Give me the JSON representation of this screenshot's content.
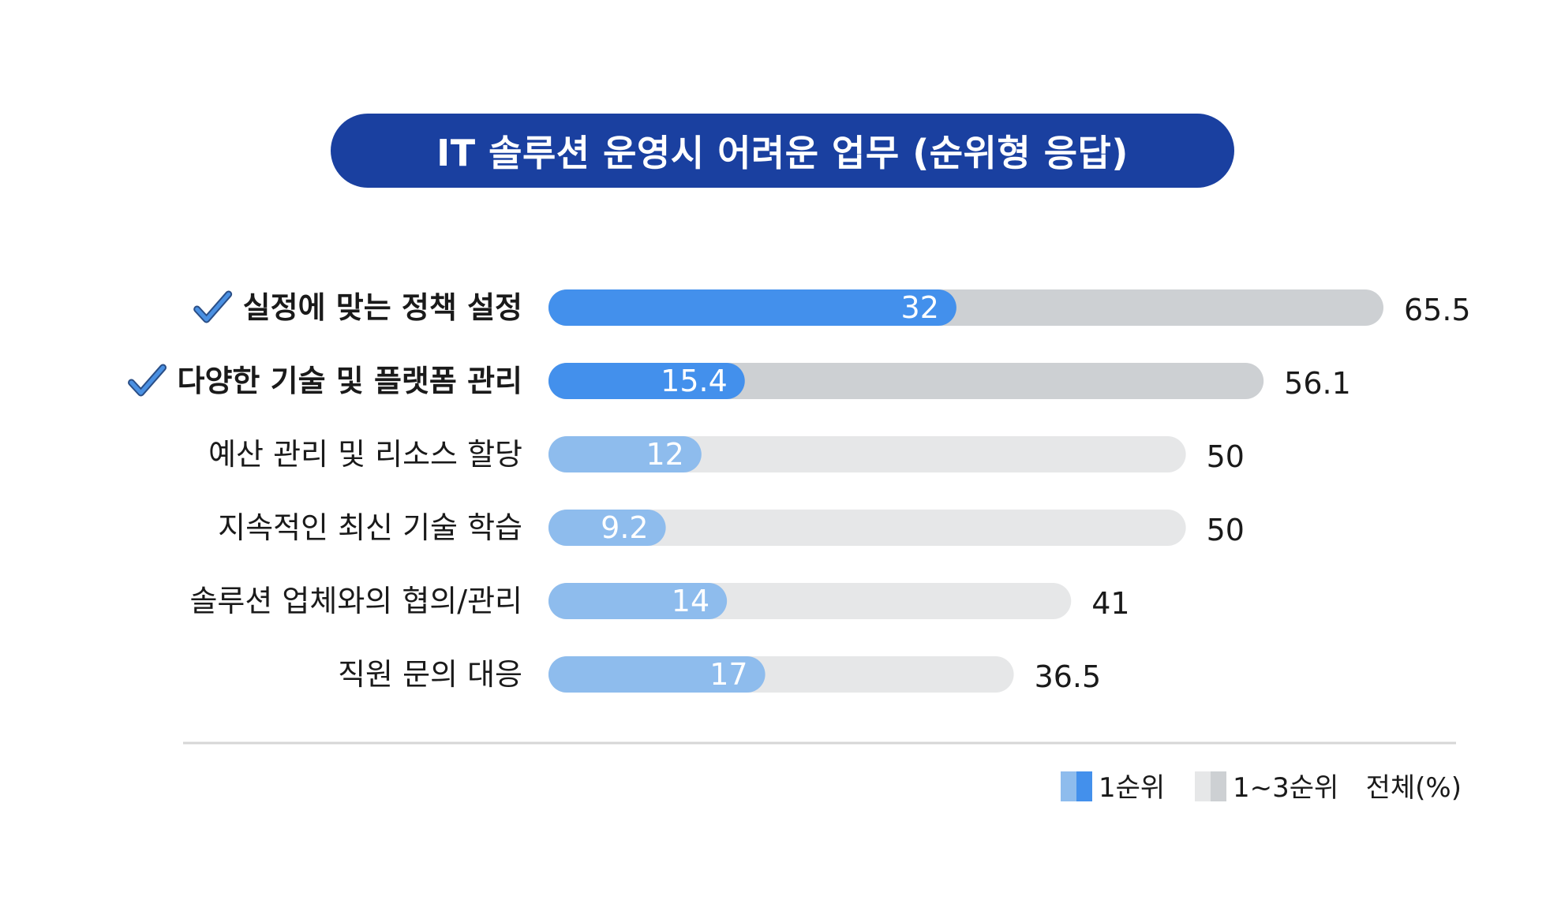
{
  "title": "IT 솔루션 운영시 어려운 업무 (순위형 응답)",
  "colors": {
    "title_bg": "#1a40a0",
    "first_rank_highlight": "#4390ec",
    "first_rank": "#8ebced",
    "top3_highlight": "#cdd0d3",
    "top3": "#e6e7e8",
    "check": "#4a90e2"
  },
  "chart_data": {
    "type": "bar",
    "orientation": "horizontal",
    "categories": [
      "실정에 맞는 정책 설정",
      "다양한 기술 및 플랫폼 관리",
      "예산 관리 및 리소스 할당",
      "지속적인 최신 기술 학습",
      "솔루션 업체와의 협의/관리",
      "직원 문의 대응"
    ],
    "highlighted": [
      true,
      true,
      false,
      false,
      false,
      false
    ],
    "highlight_icon": "checkmark-icon",
    "series": [
      {
        "name": "1순위",
        "values": [
          32,
          15.4,
          12,
          9.2,
          14,
          17
        ]
      },
      {
        "name": "1~3순위",
        "values": [
          65.5,
          56.1,
          50,
          50,
          41,
          36.5
        ]
      }
    ],
    "xlim": [
      0,
      65.5
    ],
    "unit_label": "전체(%)",
    "legend_position": "bottom-right",
    "grid": false
  }
}
